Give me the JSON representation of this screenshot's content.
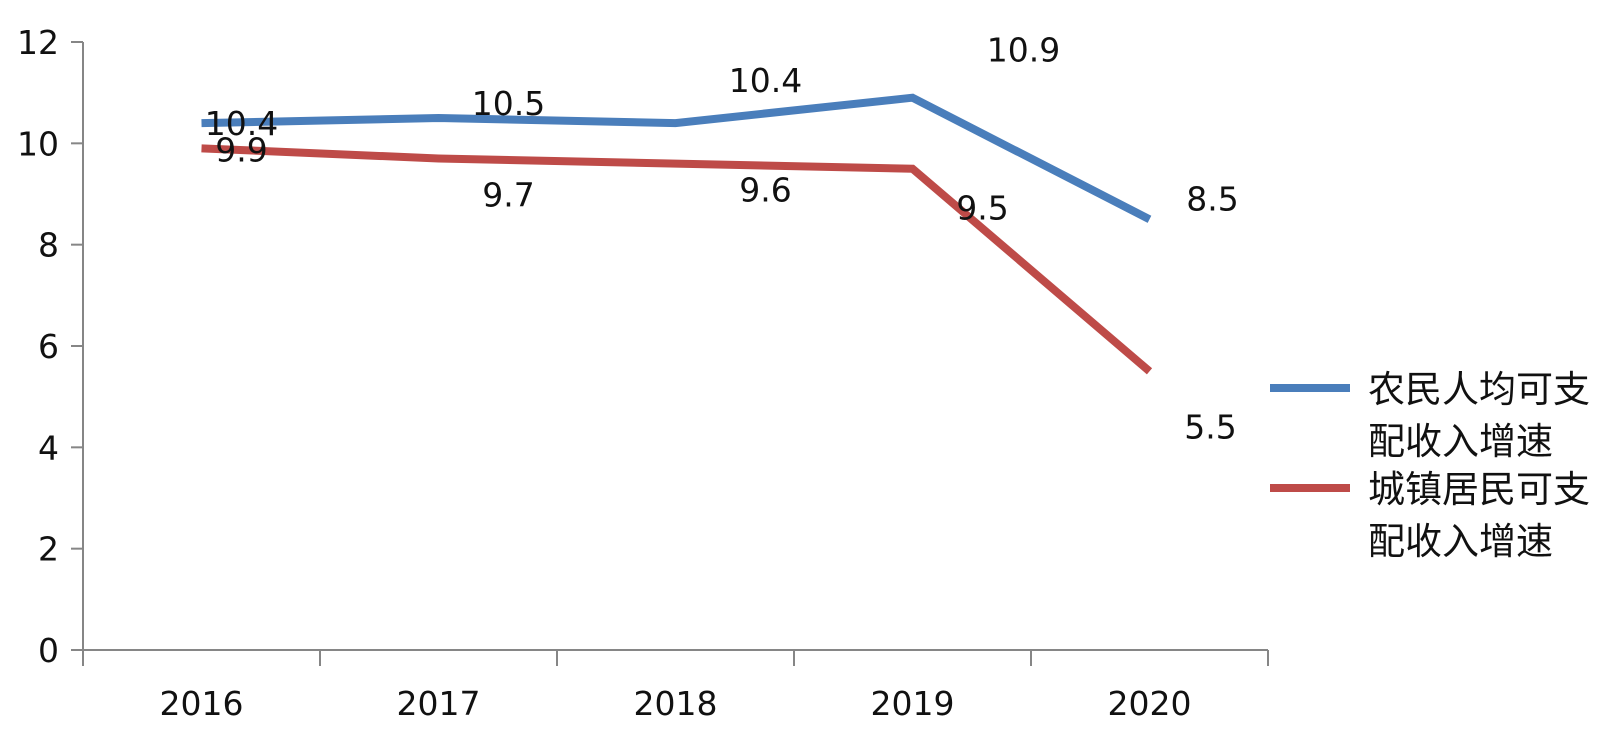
{
  "chart_data": {
    "type": "line",
    "title": "",
    "xlabel": "",
    "ylabel": "",
    "categories": [
      "2016",
      "2017",
      "2018",
      "2019",
      "2020"
    ],
    "ylim": [
      0,
      12
    ],
    "yticks": [
      0,
      2,
      4,
      6,
      8,
      10,
      12
    ],
    "grid": false,
    "legend_position": "right",
    "series": [
      {
        "name": "农民人均可支配收入增速",
        "legend_lines": [
          "农民人均可支",
          "配收入增速"
        ],
        "color": "#4a7ebb",
        "values": [
          10.4,
          10.5,
          10.4,
          10.9,
          8.5
        ],
        "labels": [
          "10.4",
          "10.5",
          "10.4",
          "10.9",
          "8.5"
        ]
      },
      {
        "name": "城镇居民可支配收入增速",
        "legend_lines": [
          "城镇居民可支",
          "配收入增速"
        ],
        "color": "#be4b48",
        "values": [
          9.9,
          9.7,
          9.6,
          9.5,
          5.5
        ],
        "labels": [
          "9.9",
          "9.7",
          "9.6",
          "9.5",
          "5.5"
        ]
      }
    ]
  }
}
